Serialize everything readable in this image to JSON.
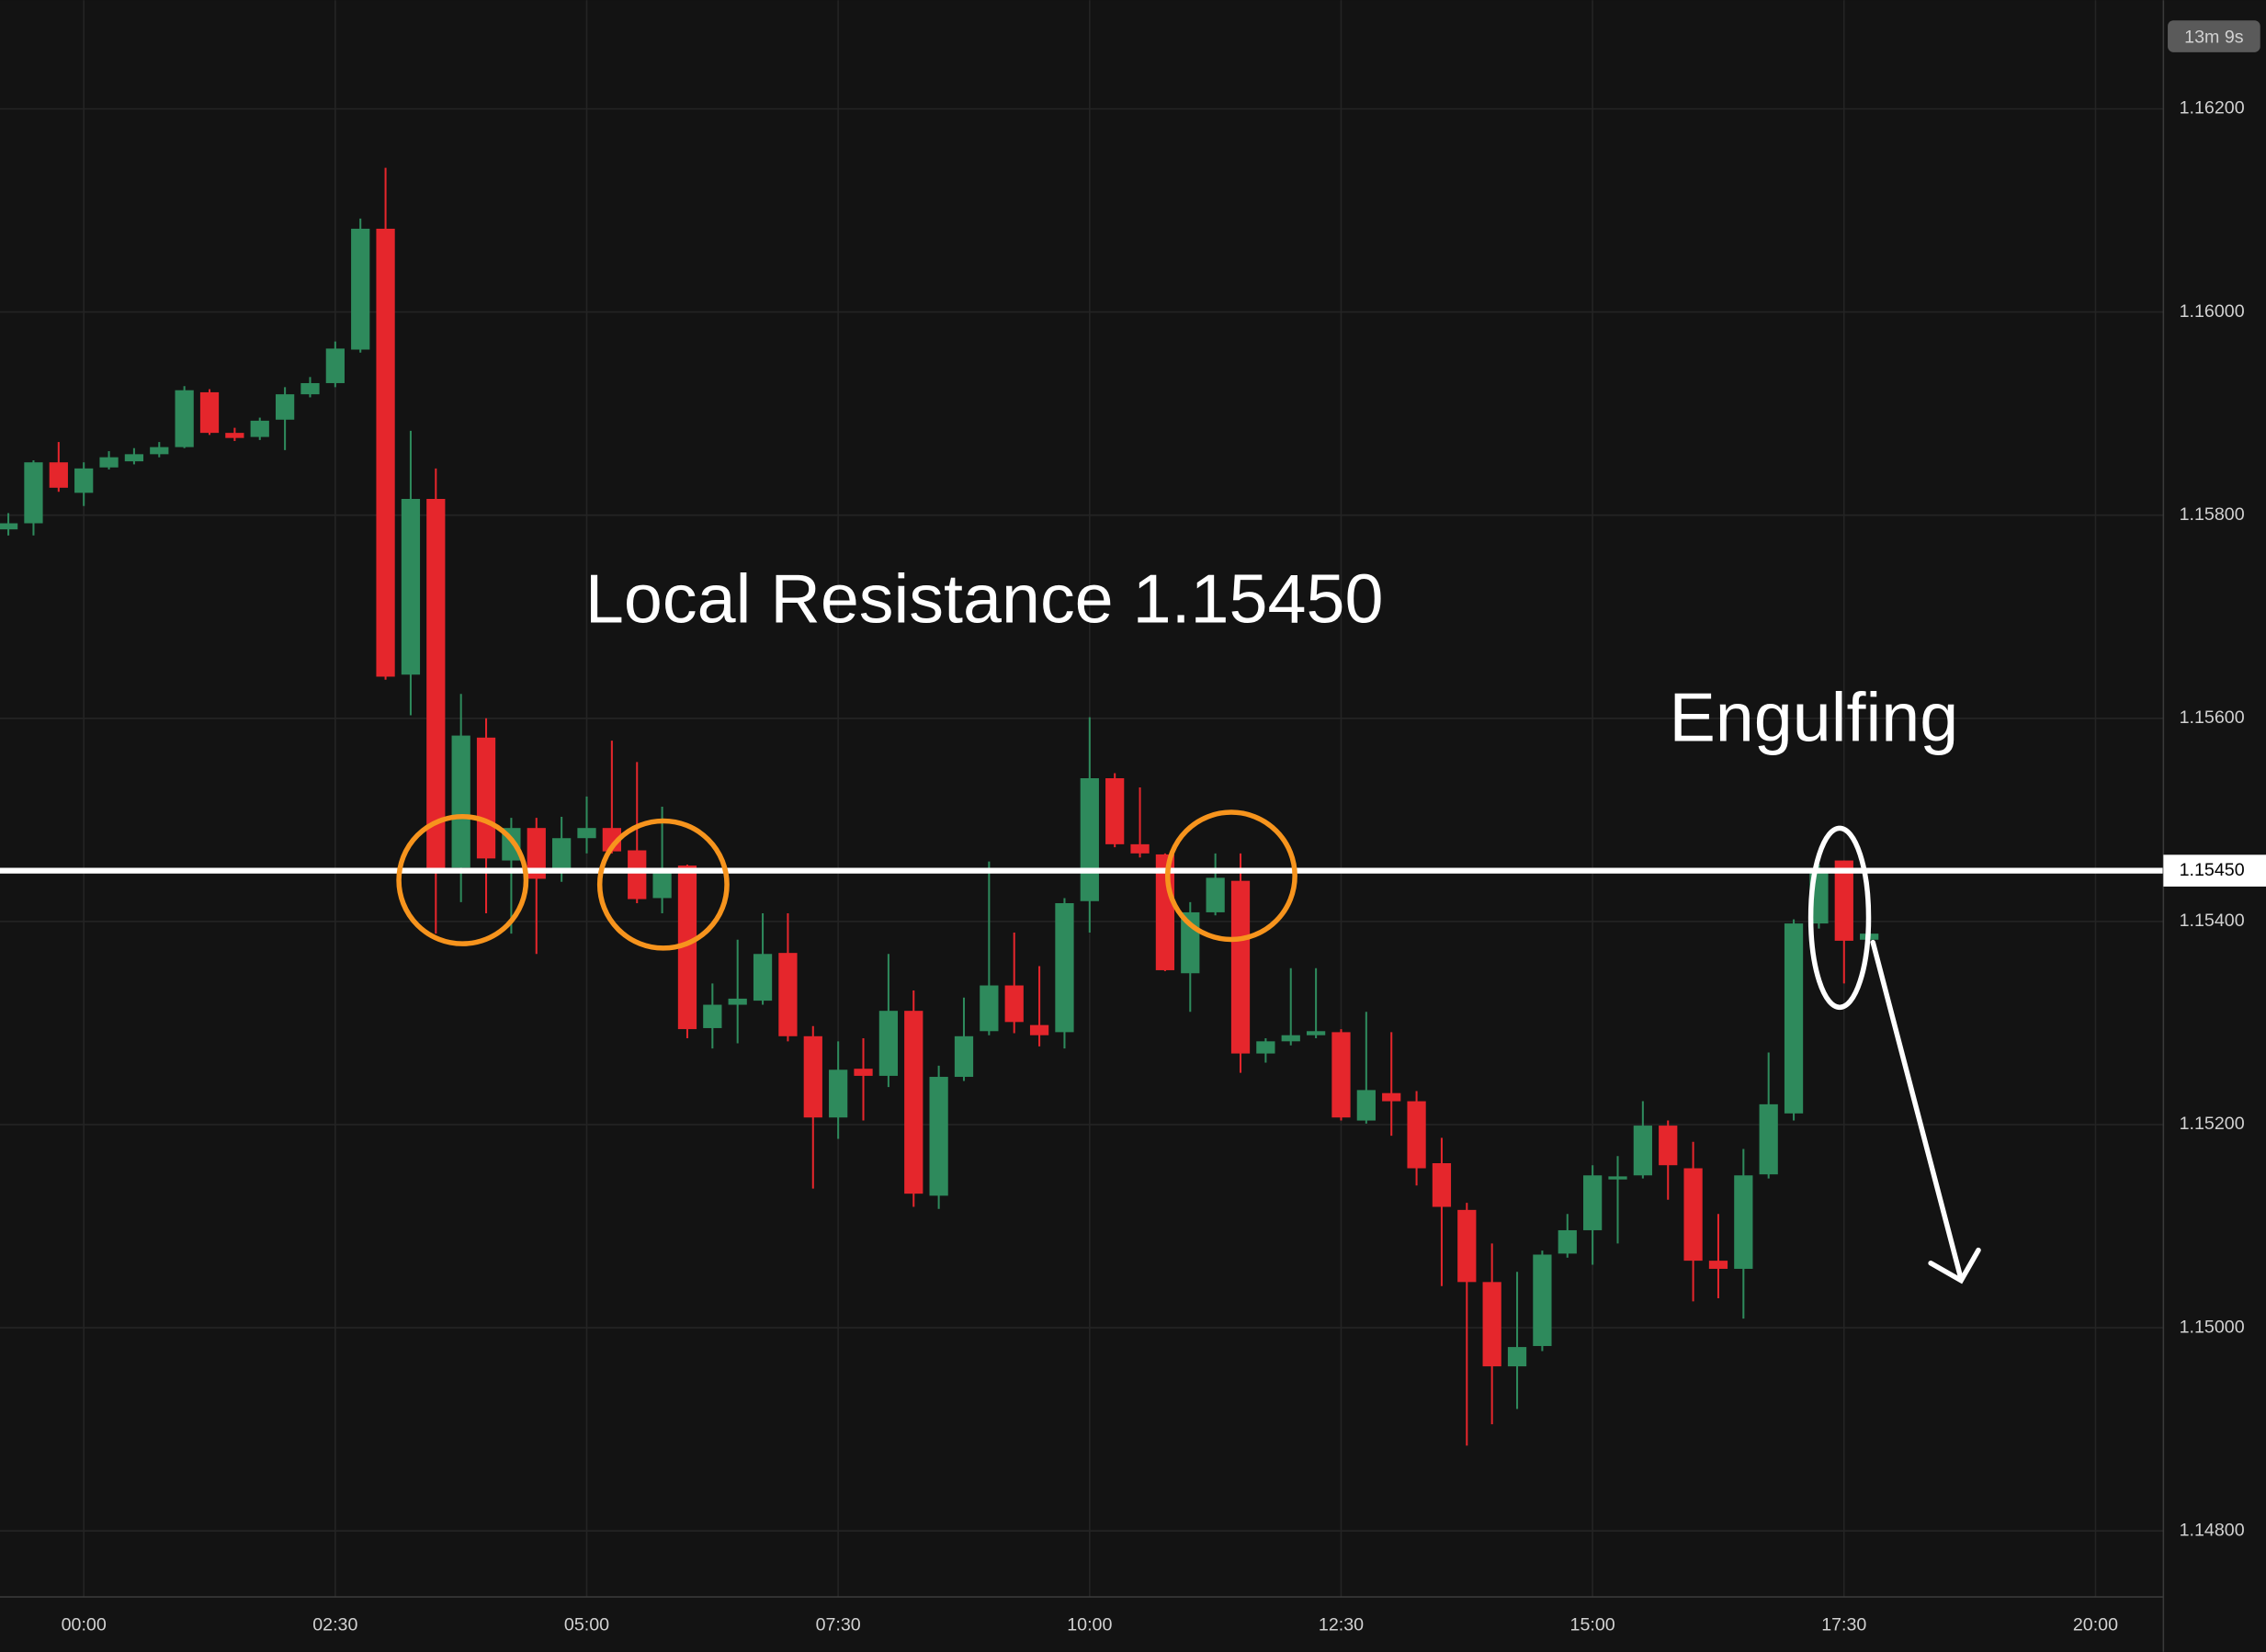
{
  "chart_data": {
    "type": "candlestick",
    "up_color": "#2e8a5c",
    "down_color": "#e5262c",
    "x": [
      -0.75,
      -0.5,
      -0.25,
      0,
      0.25,
      0.5,
      0.75,
      1,
      1.25,
      1.5,
      1.75,
      2,
      2.25,
      2.5,
      2.75,
      3,
      3.25,
      3.5,
      3.75,
      4,
      4.25,
      4.5,
      4.75,
      5,
      5.25,
      5.5,
      5.75,
      6,
      6.25,
      6.5,
      6.75,
      7,
      7.25,
      7.5,
      7.75,
      8,
      8.25,
      8.5,
      8.75,
      9,
      9.25,
      9.5,
      9.75,
      10,
      10.25,
      10.5,
      10.75,
      11,
      11.25,
      11.5,
      11.75,
      12,
      12.25,
      12.5,
      12.75,
      13,
      13.25,
      13.5,
      13.75,
      14,
      14.25,
      14.5,
      14.75,
      15,
      15.25,
      15.5,
      15.75,
      16,
      16.25,
      16.5,
      16.75,
      17,
      17.25,
      17.5,
      17.75
    ],
    "open": [
      1.15786,
      1.15792,
      1.15852,
      1.15822,
      1.15847,
      1.15853,
      1.1586,
      1.15867,
      1.15921,
      1.15881,
      1.15877,
      1.15894,
      1.15919,
      1.1593,
      1.15963,
      1.16082,
      1.15643,
      1.15816,
      1.15453,
      1.15581,
      1.1546,
      1.15492,
      1.15448,
      1.15482,
      1.15492,
      1.1547,
      1.15423,
      1.15455,
      1.15295,
      1.15318,
      1.15322,
      1.15369,
      1.15287,
      1.15207,
      1.15255,
      1.15248,
      1.15312,
      1.1513,
      1.15247,
      1.15292,
      1.15337,
      1.15298,
      1.15291,
      1.1542,
      1.15541,
      1.15476,
      1.15466,
      1.15349,
      1.15409,
      1.1544,
      1.1527,
      1.15282,
      1.15288,
      1.15291,
      1.15204,
      1.15231,
      1.15223,
      1.15162,
      1.15116,
      1.15045,
      1.14962,
      1.14982,
      1.15073,
      1.15096,
      1.15146,
      1.1515,
      1.15199,
      1.15157,
      1.15066,
      1.15058,
      1.15151,
      1.15211,
      1.15398,
      1.1546,
      1.15382
    ],
    "high": [
      1.15802,
      1.15854,
      1.15872,
      1.15852,
      1.15863,
      1.15866,
      1.15872,
      1.15927,
      1.15924,
      1.15886,
      1.15896,
      1.15926,
      1.15936,
      1.15971,
      1.16092,
      1.16142,
      1.15883,
      1.15846,
      1.15624,
      1.156,
      1.15502,
      1.15502,
      1.15503,
      1.15523,
      1.15578,
      1.15557,
      1.15513,
      1.15456,
      1.15339,
      1.15382,
      1.15408,
      1.15408,
      1.15297,
      1.15282,
      1.15285,
      1.15368,
      1.15332,
      1.15258,
      1.15325,
      1.15459,
      1.15389,
      1.15356,
      1.15423,
      1.15601,
      1.15546,
      1.15532,
      1.15467,
      1.15419,
      1.15467,
      1.15467,
      1.15285,
      1.15354,
      1.15354,
      1.15294,
      1.15311,
      1.15291,
      1.15233,
      1.15187,
      1.15123,
      1.15083,
      1.15055,
      1.15076,
      1.15112,
      1.1516,
      1.15169,
      1.15223,
      1.15204,
      1.15183,
      1.15112,
      1.15176,
      1.15271,
      1.15402,
      1.15456,
      1.1546,
      1.15389
    ],
    "low": [
      1.1578,
      1.1578,
      1.15823,
      1.15809,
      1.15845,
      1.1585,
      1.15857,
      1.15866,
      1.15879,
      1.15873,
      1.15874,
      1.15864,
      1.15916,
      1.15926,
      1.1596,
      1.15638,
      1.15603,
      1.15388,
      1.15419,
      1.15408,
      1.15388,
      1.15368,
      1.15439,
      1.15467,
      1.15467,
      1.15418,
      1.15408,
      1.15285,
      1.15275,
      1.1528,
      1.15318,
      1.15282,
      1.15137,
      1.15186,
      1.15204,
      1.15237,
      1.15119,
      1.15117,
      1.15243,
      1.15288,
      1.1529,
      1.15277,
      1.15275,
      1.15389,
      1.15473,
      1.15463,
      1.15351,
      1.15311,
      1.15406,
      1.15251,
      1.15261,
      1.15278,
      1.15285,
      1.15204,
      1.15201,
      1.15189,
      1.1514,
      1.15041,
      1.14884,
      1.14905,
      1.1492,
      1.14977,
      1.15069,
      1.15062,
      1.15083,
      1.15147,
      1.15126,
      1.15026,
      1.15029,
      1.15009,
      1.15147,
      1.15204,
      1.15393,
      1.15339,
      1.15381
    ],
    "close": [
      1.15792,
      1.15852,
      1.15827,
      1.15846,
      1.15857,
      1.1586,
      1.15867,
      1.15923,
      1.15881,
      1.15876,
      1.15893,
      1.15919,
      1.1593,
      1.15964,
      1.16082,
      1.15641,
      1.15816,
      1.15452,
      1.15583,
      1.15462,
      1.15492,
      1.15442,
      1.15482,
      1.15492,
      1.15469,
      1.15422,
      1.15449,
      1.15294,
      1.15318,
      1.15324,
      1.15368,
      1.15287,
      1.15207,
      1.15254,
      1.15248,
      1.15312,
      1.15132,
      1.15247,
      1.15287,
      1.15337,
      1.15301,
      1.15288,
      1.15418,
      1.15541,
      1.15476,
      1.15467,
      1.15352,
      1.15409,
      1.15443,
      1.1527,
      1.15282,
      1.15288,
      1.15292,
      1.15207,
      1.15234,
      1.15223,
      1.15157,
      1.15119,
      1.15045,
      1.14962,
      1.14981,
      1.15072,
      1.15096,
      1.1515,
      1.15149,
      1.15199,
      1.1516,
      1.15066,
      1.15058,
      1.1515,
      1.1522,
      1.15398,
      1.15449,
      1.15381,
      1.15388
    ],
    "xlim": [
      -0.833,
      20.675
    ],
    "ylim": [
      1.14735,
      1.16307
    ],
    "xticks": [
      {
        "value": 0,
        "label": "00:00"
      },
      {
        "value": 2.5,
        "label": "02:30"
      },
      {
        "value": 5,
        "label": "05:00"
      },
      {
        "value": 7.5,
        "label": "07:30"
      },
      {
        "value": 10,
        "label": "10:00"
      },
      {
        "value": 12.5,
        "label": "12:30"
      },
      {
        "value": 15,
        "label": "15:00"
      },
      {
        "value": 17.5,
        "label": "17:30"
      },
      {
        "value": 20,
        "label": "20:00"
      }
    ],
    "yticks": [
      {
        "value": 1.148,
        "label": "1.14800"
      },
      {
        "value": 1.15,
        "label": "1.15000"
      },
      {
        "value": 1.152,
        "label": "1.15200"
      },
      {
        "value": 1.154,
        "label": "1.15400"
      },
      {
        "value": 1.156,
        "label": "1.15600"
      },
      {
        "value": 1.158,
        "label": "1.15800"
      },
      {
        "value": 1.16,
        "label": "1.16000"
      },
      {
        "value": 1.162,
        "label": "1.16200"
      }
    ],
    "grid": true,
    "resistance": {
      "value": 1.1545,
      "label": "1.15450"
    },
    "annotations": [
      "Local Resistance 1.15450",
      "Engulfing"
    ],
    "countdown": "13m 9s"
  }
}
